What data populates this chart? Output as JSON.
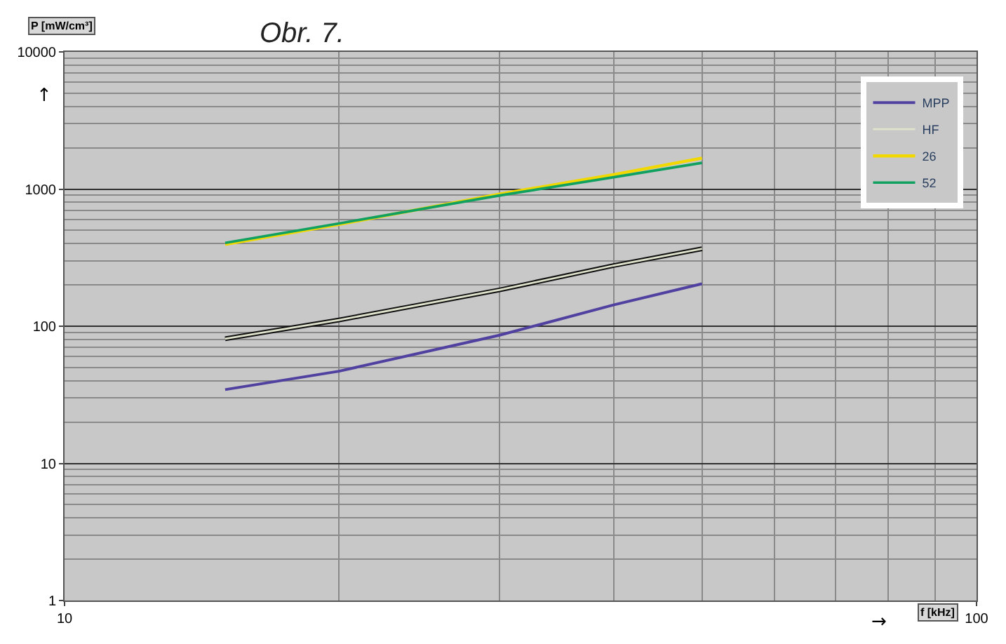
{
  "chart_data": {
    "type": "line",
    "title": "Obr. 7.",
    "xlabel": "f [kHz]",
    "ylabel": "P [mW/cm³]",
    "annotations": [
      "↑",
      "→"
    ],
    "x": [
      15,
      20,
      30,
      40,
      50
    ],
    "series": [
      {
        "name": "MPP",
        "color": "#5040a0",
        "values": [
          34.5,
          47,
          86,
          143,
          204
        ]
      },
      {
        "color": "#101010",
        "values": [
          81,
          111,
          184,
          277,
          367
        ]
      },
      {
        "name": "HF",
        "color": "#e0e4cc",
        "values": [
          81,
          111,
          184,
          277,
          367
        ]
      },
      {
        "name": "26",
        "color": "#f0d800",
        "values": [
          395,
          553,
          919,
          1276,
          1680
        ]
      },
      {
        "name": "52",
        "color": "#10a060",
        "values": [
          405,
          562,
          898,
          1220,
          1553
        ]
      }
    ],
    "log": "xy",
    "xlim": [
      10,
      100
    ],
    "xticks": [
      10,
      100
    ],
    "ylim": [
      1,
      10000
    ],
    "yticks": [
      1,
      10,
      100,
      1000,
      10000
    ],
    "grid": true,
    "legend": "top right",
    "line_style": "solid",
    "marker": "none"
  }
}
